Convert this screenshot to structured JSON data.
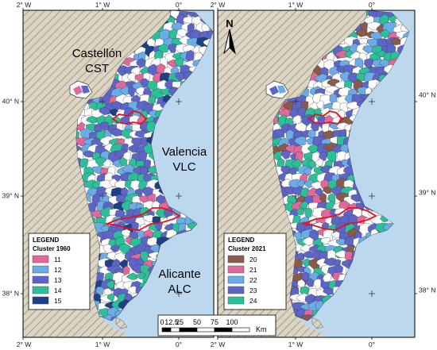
{
  "axis_labels": {
    "top": [
      "2° W",
      "1° W",
      "0°",
      "2° W",
      "1° W",
      "0°"
    ],
    "bottom": [
      "2° W",
      "1° W",
      "0°",
      "2° W",
      "1° W",
      "0°"
    ],
    "left": [
      "40° N",
      "39° N",
      "38° N"
    ],
    "right": [
      "40° N",
      "39° N",
      "38° N"
    ]
  },
  "map_left": {
    "legend": {
      "title_line1": "LEGEND",
      "title_line2": "Cluster 1960",
      "entries": [
        {
          "label": "11",
          "color": "#e0689a"
        },
        {
          "label": "12",
          "color": "#6aace8"
        },
        {
          "label": "13",
          "color": "#5d66c8"
        },
        {
          "label": "14",
          "color": "#2cc09a"
        },
        {
          "label": "15",
          "color": "#1f3f86"
        }
      ]
    },
    "provinces": [
      {
        "line1": "Castellón",
        "line2": "CST"
      },
      {
        "line1": "Valencia",
        "line2": "VLC"
      },
      {
        "line1": "Alicante",
        "line2": "ALC"
      }
    ]
  },
  "map_right": {
    "legend": {
      "title_line1": "LEGEND",
      "title_line2": "Cluster 2021",
      "entries": [
        {
          "label": "20",
          "color": "#8a5a4a"
        },
        {
          "label": "21",
          "color": "#e0689a"
        },
        {
          "label": "22",
          "color": "#6aace8"
        },
        {
          "label": "23",
          "color": "#5d66c8"
        },
        {
          "label": "24",
          "color": "#2cc09a"
        }
      ]
    },
    "north": "N"
  },
  "scale_bar": {
    "labels": [
      "0",
      "12.5",
      "25",
      "50",
      "75",
      "100"
    ],
    "unit": "Km"
  },
  "colors": {
    "sea": "#bcd8ef",
    "land_hatch": "#d9d2c0",
    "land_no_data": "#ffffff",
    "province_border": "#e0141e"
  }
}
